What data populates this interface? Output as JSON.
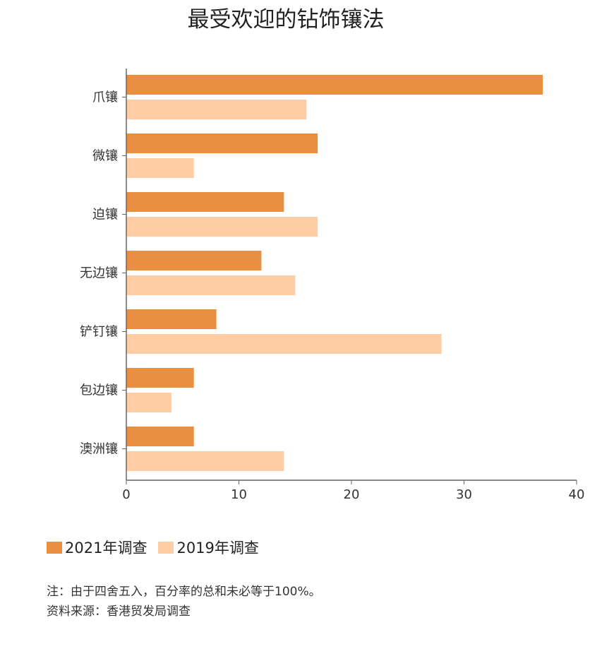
{
  "chart_data": {
    "type": "bar",
    "orientation": "horizontal",
    "title": "最受欢迎的钻饰镶法",
    "categories": [
      "爪镶",
      "微镶",
      "迫镶",
      "无边镶",
      "铲钉镶",
      "包边镶",
      "澳洲镶"
    ],
    "series": [
      {
        "name": "2021年调查",
        "color": "#E88F42",
        "values": [
          37,
          17,
          14,
          12,
          8,
          6,
          6
        ]
      },
      {
        "name": "2019年调查",
        "color": "#FFCCA3",
        "values": [
          16,
          6,
          17,
          15,
          28,
          4,
          14
        ]
      }
    ],
    "xlim": [
      0,
      40
    ],
    "xticks": [
      "0",
      "10",
      "20",
      "30",
      "40"
    ],
    "grid": false,
    "legend_position": "bottom-left"
  },
  "notes": {
    "line1": "注：由于四舍五入，百分率的总和未必等于100%。",
    "line2": "资料来源：香港贸发局调查"
  }
}
